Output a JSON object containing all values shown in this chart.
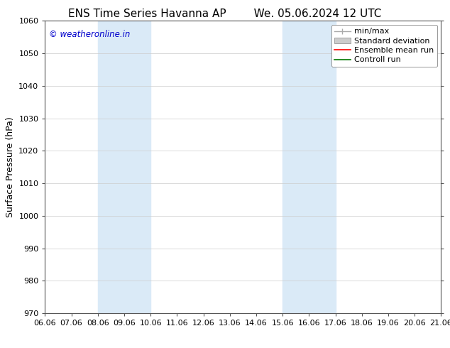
{
  "title_left": "ENS Time Series Havanna AP",
  "title_right": "We. 05.06.2024 12 UTC",
  "ylabel": "Surface Pressure (hPa)",
  "ylim": [
    970,
    1060
  ],
  "yticks": [
    970,
    980,
    990,
    1000,
    1010,
    1020,
    1030,
    1040,
    1050,
    1060
  ],
  "xtick_labels": [
    "06.06",
    "07.06",
    "08.06",
    "09.06",
    "10.06",
    "11.06",
    "12.06",
    "13.06",
    "14.06",
    "15.06",
    "16.06",
    "17.06",
    "18.06",
    "19.06",
    "20.06",
    "21.06"
  ],
  "shaded_regions": [
    {
      "xstart": 2,
      "xend": 4,
      "color": "#daeaf7"
    },
    {
      "xstart": 9,
      "xend": 11,
      "color": "#daeaf7"
    }
  ],
  "watermark": "© weatheronline.in",
  "watermark_color": "#0000cc",
  "background_color": "#ffffff",
  "legend_items": [
    {
      "label": "min/max",
      "color": "#aaaaaa"
    },
    {
      "label": "Standard deviation",
      "color": "#cccccc"
    },
    {
      "label": "Ensemble mean run",
      "color": "#ff0000"
    },
    {
      "label": "Controll run",
      "color": "#007700"
    }
  ],
  "spine_color": "#555555",
  "grid_color": "#cccccc",
  "title_fontsize": 11,
  "axis_label_fontsize": 9,
  "tick_fontsize": 8,
  "legend_fontsize": 8
}
